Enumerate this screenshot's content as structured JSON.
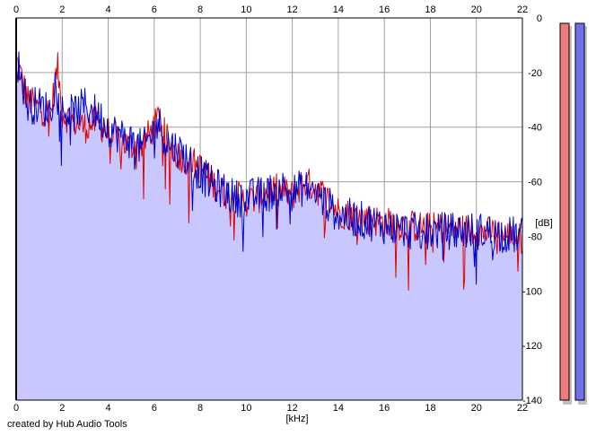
{
  "chart_data": {
    "type": "area",
    "x_unit_label": "[kHz]",
    "y_unit_label": "[dB]",
    "xlim": [
      0,
      22
    ],
    "ylim": [
      -140,
      0
    ],
    "x_ticks": [
      0,
      2,
      4,
      6,
      8,
      10,
      12,
      14,
      16,
      18,
      20,
      22
    ],
    "y_ticks": [
      0,
      -20,
      -40,
      -60,
      -80,
      -100,
      -120,
      -140
    ],
    "grid": true,
    "series": [
      {
        "color": "#e00000",
        "x": [
          0,
          0.5,
          1,
          1.5,
          1.8,
          2,
          2.5,
          3,
          3.5,
          4,
          4.5,
          5,
          5.5,
          6,
          6.2,
          6.5,
          7,
          7.5,
          8,
          8.5,
          9,
          9.5,
          10,
          10.5,
          11,
          11.5,
          12,
          12.5,
          13,
          13.5,
          14,
          15,
          16,
          17,
          18,
          19,
          20,
          21,
          22
        ],
        "values": [
          -15,
          -30,
          -33,
          -35,
          -18,
          -35,
          -38,
          -40,
          -38,
          -42,
          -45,
          -47,
          -46,
          -40,
          -36,
          -44,
          -50,
          -52,
          -55,
          -60,
          -64,
          -65,
          -67,
          -66,
          -63,
          -63,
          -65,
          -60,
          -62,
          -66,
          -71,
          -73,
          -75,
          -76,
          -77,
          -77,
          -78,
          -79,
          -81
        ]
      },
      {
        "color": "#0000cc",
        "x": [
          0,
          0.5,
          1,
          1.5,
          1.8,
          2,
          2.5,
          3,
          3.5,
          4,
          4.5,
          5,
          5.5,
          6,
          6.2,
          6.5,
          7,
          7.5,
          8,
          8.5,
          9,
          9.5,
          10,
          10.5,
          11,
          11.5,
          12,
          12.5,
          13,
          13.5,
          14,
          15,
          16,
          17,
          18,
          19,
          20,
          21,
          22
        ],
        "values": [
          -14,
          -32,
          -32,
          -34,
          -17,
          -34,
          -35,
          -32,
          -35,
          -40,
          -43,
          -45,
          -48,
          -41,
          -38,
          -45,
          -48,
          -52,
          -57,
          -61,
          -63,
          -66,
          -66,
          -65,
          -64,
          -62,
          -64,
          -62,
          -64,
          -68,
          -72,
          -74,
          -76,
          -78,
          -78,
          -78,
          -78,
          -79,
          -80
        ]
      }
    ]
  },
  "meters": [
    {
      "color": "#ee7a7a",
      "level": 1.0
    },
    {
      "color": "#7070ee",
      "level": 1.0
    }
  ],
  "fill_color": "#c8c8ff",
  "footer_text": "created by Hub Audio Tools"
}
